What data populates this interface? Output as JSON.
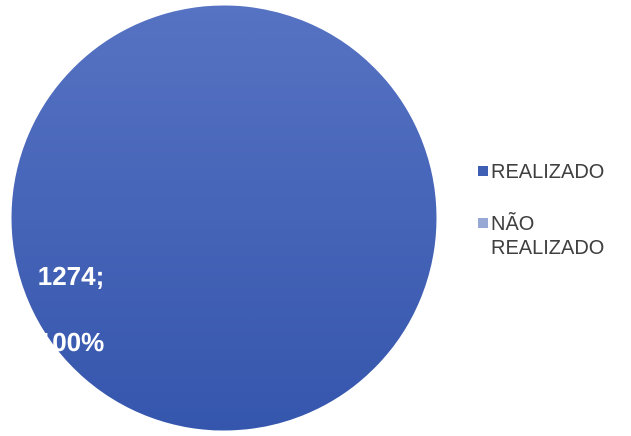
{
  "chart_data": {
    "type": "pie",
    "title": "",
    "categories": [
      "REALIZADO",
      "NÃO REALIZADO"
    ],
    "values": [
      1274,
      0
    ],
    "percent_labels": [
      "100%",
      "0%"
    ],
    "data_labels": [
      {
        "line1": "1274;",
        "line2": "100%"
      }
    ],
    "colors": [
      "#3F5FB5",
      "#98A8D5"
    ],
    "legend_position": "right"
  },
  "legend": {
    "items": [
      {
        "label": "REALIZADO",
        "color": "#3F5FB5"
      },
      {
        "label": "NÃO REALIZADO",
        "color": "#98A8D5"
      }
    ]
  }
}
